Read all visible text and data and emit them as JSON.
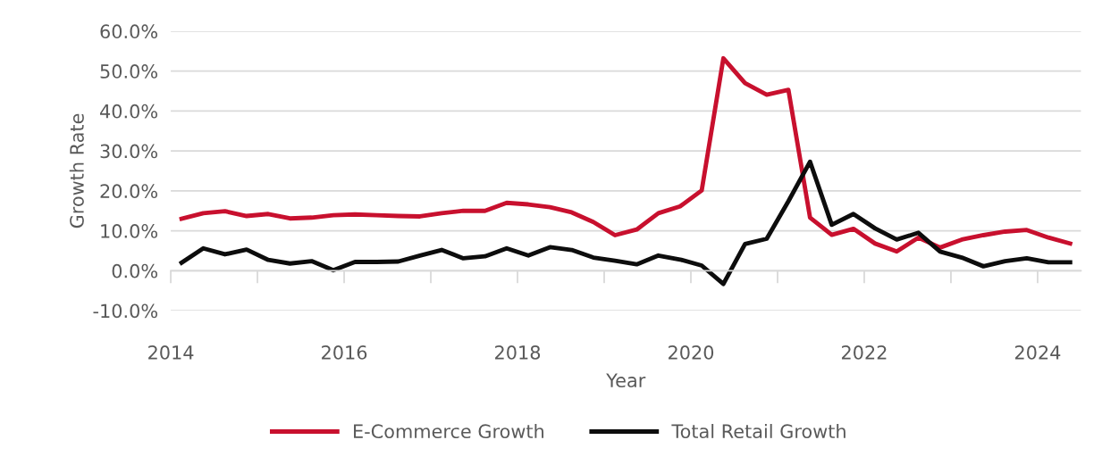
{
  "chart_data": {
    "type": "line",
    "xlabel": "Year",
    "ylabel": "Growth Rate",
    "x": [
      2014.125,
      2014.375,
      2014.625,
      2014.875,
      2015.125,
      2015.375,
      2015.625,
      2015.875,
      2016.125,
      2016.375,
      2016.625,
      2016.875,
      2017.125,
      2017.375,
      2017.625,
      2017.875,
      2018.125,
      2018.375,
      2018.625,
      2018.875,
      2019.125,
      2019.375,
      2019.625,
      2019.875,
      2020.125,
      2020.375,
      2020.625,
      2020.875,
      2021.125,
      2021.375,
      2021.625,
      2021.875,
      2022.125,
      2022.375,
      2022.625,
      2022.875,
      2023.125,
      2023.375,
      2023.625,
      2023.875,
      2024.125,
      2024.375
    ],
    "series": [
      {
        "name": "E-Commerce Growth",
        "color": "#c8102e",
        "values": [
          13.0,
          14.4,
          14.9,
          13.7,
          14.2,
          13.1,
          13.3,
          13.9,
          14.1,
          13.9,
          13.7,
          13.6,
          14.4,
          15.0,
          15.0,
          17.0,
          16.6,
          15.9,
          14.6,
          12.2,
          8.9,
          10.3,
          14.4,
          16.1,
          20.1,
          53.2,
          47.0,
          44.1,
          45.3,
          13.3,
          9.0,
          10.5,
          6.8,
          4.8,
          8.3,
          5.8,
          7.8,
          8.9,
          9.8,
          10.2,
          8.3,
          6.8
        ]
      },
      {
        "name": "Total Retail Growth",
        "color": "#0d0d0d",
        "values": [
          2.0,
          5.6,
          4.1,
          5.3,
          2.7,
          1.8,
          2.4,
          0.1,
          2.2,
          2.2,
          2.3,
          3.8,
          5.2,
          3.1,
          3.6,
          5.6,
          3.8,
          5.9,
          5.2,
          3.3,
          2.5,
          1.6,
          3.8,
          2.8,
          1.3,
          -3.3,
          6.7,
          8.0,
          17.4,
          27.3,
          11.5,
          14.2,
          10.6,
          7.8,
          9.5,
          4.8,
          3.3,
          1.1,
          2.4,
          3.1,
          2.1,
          2.1
        ]
      }
    ],
    "xlim": [
      2014,
      2024.5
    ],
    "xticks": [
      2014,
      {
        "value": 2015,
        "label": null
      },
      2016,
      {
        "value": 2017,
        "label": null
      },
      2018,
      {
        "value": 2019,
        "label": null
      },
      2020,
      {
        "value": 2021,
        "label": null
      },
      2022,
      {
        "value": 2023,
        "label": null
      },
      2024
    ],
    "ylim": [
      -10,
      60
    ],
    "yticks": [
      {
        "value": -10,
        "label": "-10.0%"
      },
      {
        "value": 0,
        "label": "0.0%"
      },
      {
        "value": 10,
        "label": "10.0%"
      },
      {
        "value": 20,
        "label": "20.0%"
      },
      {
        "value": 30,
        "label": "30.0%"
      },
      {
        "value": 40,
        "label": "40.0%"
      },
      {
        "value": 50,
        "label": "50.0%"
      },
      {
        "value": 60,
        "label": "60.0%"
      }
    ],
    "grid": "y",
    "legend": "bottom",
    "marker": "none",
    "line_style": "solid"
  }
}
